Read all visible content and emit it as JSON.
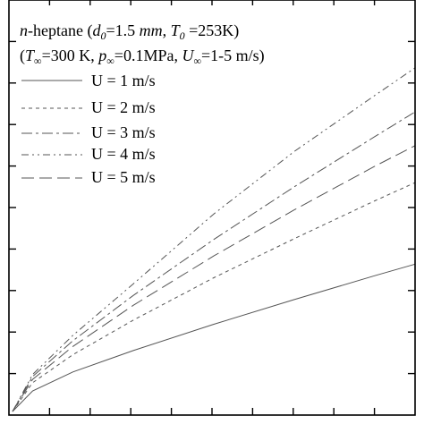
{
  "chart_data": {
    "type": "line",
    "title_line1": {
      "prefix": "n",
      "text": "-heptane (",
      "d_label": "d",
      "d_sub": "0",
      "d_value": "=1.5 ",
      "d_unit": "mm",
      "sep": ", ",
      "t_label": "T",
      "t_sub": "0",
      "t_value": " =253K)"
    },
    "title_line2": {
      "open": "(",
      "t_label": "T",
      "t_sub": "∞",
      "t_value": "=300 K, ",
      "p_label": "p",
      "p_sub": "∞",
      "p_value": "=0.1MPa, ",
      "u_label": "U",
      "u_sub": "∞",
      "u_value": "=1-5 m/s)"
    },
    "x_ticks_count": 10,
    "y_ticks_count": 10,
    "series": [
      {
        "name": "U = 1 m/s",
        "dash": "solid",
        "x": [
          0,
          0.05,
          0.15,
          0.3,
          0.5,
          0.7,
          0.9,
          1.0
        ],
        "y": [
          0,
          0.05,
          0.096,
          0.148,
          0.212,
          0.272,
          0.33,
          0.358
        ]
      },
      {
        "name": "U = 2 m/s",
        "dash": "dashed",
        "x": [
          0,
          0.05,
          0.15,
          0.3,
          0.5,
          0.7,
          0.9,
          1.0
        ],
        "y": [
          0,
          0.07,
          0.138,
          0.222,
          0.325,
          0.42,
          0.512,
          0.556
        ]
      },
      {
        "name": "U = 3 m/s",
        "dash": "longdashdot",
        "x": [
          0,
          0.05,
          0.15,
          0.3,
          0.5,
          0.7,
          0.9,
          1.0
        ],
        "y": [
          0,
          0.085,
          0.172,
          0.282,
          0.418,
          0.546,
          0.668,
          0.728
        ]
      },
      {
        "name": "U = 4 m/s",
        "dash": "dashdot",
        "x": [
          0,
          0.05,
          0.15,
          0.3,
          0.5,
          0.7,
          0.9,
          1.0
        ],
        "y": [
          0,
          0.09,
          0.185,
          0.31,
          0.48,
          0.632,
          0.768,
          0.835
        ]
      },
      {
        "name": "U = 5 m/s",
        "dash": "longdash",
        "x": [
          0,
          0.05,
          0.15,
          0.3,
          0.5,
          0.7,
          0.9,
          1.0
        ],
        "y": [
          0,
          0.078,
          0.158,
          0.258,
          0.378,
          0.49,
          0.596,
          0.646
        ]
      }
    ],
    "line_color": "#555555",
    "axis_color": "#000000"
  }
}
